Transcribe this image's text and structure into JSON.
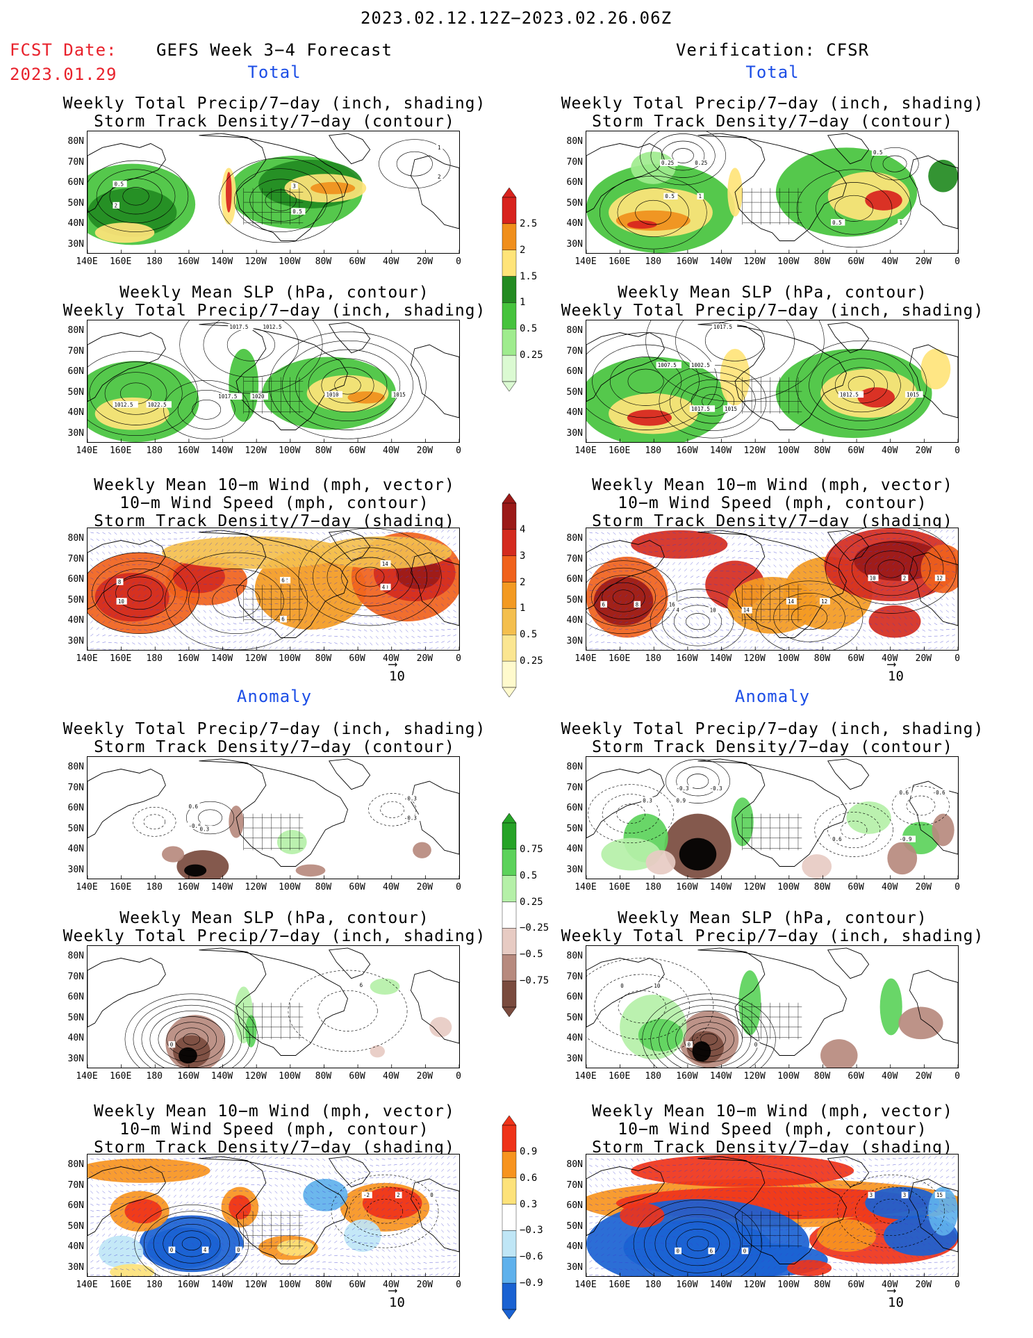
{
  "header": {
    "period": "2023.02.12.12Z−2023.02.26.06Z",
    "fcst_label": "FCST Date:",
    "fcst_date": "2023.01.29",
    "left_title": "GEFS Week 3−4 Forecast",
    "right_title": "Verification: CFSR",
    "total": "Total",
    "anomaly": "Anomaly"
  },
  "panel_titles": {
    "precip_storm": [
      "Weekly Total Precip/7−day (inch, shading)",
      "Storm Track Density/7−day (contour)"
    ],
    "slp_precip": [
      "Weekly Mean SLP (hPa, contour)",
      "Weekly Total Precip/7−day (inch, shading)"
    ],
    "wind": [
      "Weekly Mean 10−m Wind (mph, vector)",
      "10−m Wind Speed (mph, contour)",
      "Storm Track Density/7−day (shading)"
    ]
  },
  "axes": {
    "lat_labels": [
      "80N",
      "70N",
      "60N",
      "50N",
      "40N",
      "30N"
    ],
    "lon_labels": [
      "140E",
      "160E",
      "180",
      "160W",
      "140W",
      "120W",
      "100W",
      "80W",
      "60W",
      "40W",
      "20W",
      "0"
    ]
  },
  "vector_ref": "10",
  "colorbars": {
    "precip_total": {
      "labels": [
        "2.5",
        "2",
        "1.5",
        "1",
        "0.5",
        "0.25"
      ],
      "colors": [
        "#d8231e",
        "#f08f1c",
        "#ffe479",
        "#238b22",
        "#46c33d",
        "#9fec8e",
        "#dbfad2"
      ]
    },
    "storm_total": {
      "labels": [
        "4",
        "3",
        "2",
        "1",
        "0.5",
        "0.25"
      ],
      "colors": [
        "#9b1a18",
        "#d42b1f",
        "#f0621c",
        "#f39a22",
        "#f4bf4e",
        "#fbe691",
        "#fffacd"
      ]
    },
    "precip_anom": {
      "labels": [
        "0.75",
        "0.5",
        "0.25",
        "−0.25",
        "−0.5",
        "−0.75"
      ],
      "colors": [
        "#26a327",
        "#5cd25b",
        "#b5f0a8",
        "#ffffff",
        "#e7cbc3",
        "#b78a7e",
        "#7a4b3e"
      ]
    },
    "storm_anom": {
      "labels": [
        "0.9",
        "0.6",
        "0.3",
        "−0.3",
        "−0.6",
        "−0.9"
      ],
      "colors": [
        "#ef3319",
        "#f7941f",
        "#fde27a",
        "#ffffff",
        "#bfe6f6",
        "#5fb1ec",
        "#1a62d2"
      ]
    }
  },
  "maps": {
    "f_total_precip": {
      "contour_labels": [
        "2",
        "3",
        "2",
        "0.5",
        "0.5",
        "1"
      ]
    },
    "f_total_slp": {
      "contour_labels": [
        "1012.5",
        "1017.5",
        "1015",
        "1017.5",
        "1022.5",
        "1020",
        "1010",
        "1012.5"
      ]
    },
    "f_total_wind": {
      "contour_labels": [
        "8",
        "6",
        "4",
        "2",
        "10",
        "12",
        "10",
        "14",
        "6",
        "8",
        "4",
        "6"
      ]
    },
    "v_total_precip": {
      "contour_labels": [
        "0.25",
        "0.5",
        "1",
        "0.5",
        "0.25",
        "1",
        "0.5"
      ]
    },
    "v_total_slp": {
      "contour_labels": [
        "1017.5",
        "1007.5",
        "1015",
        "1017.5",
        "1015",
        "1002.5",
        "1012.5"
      ]
    },
    "v_total_wind": {
      "contour_labels": [
        "6",
        "10",
        "12",
        "14",
        "8",
        "14",
        "10",
        "12",
        "16",
        "4",
        "2"
      ]
    },
    "f_anom_precip": {
      "contour_labels": [
        "-0.6",
        "-0.3",
        "0.3",
        "0.6",
        "-0.3"
      ]
    },
    "f_anom_slp": {
      "contour_labels": [
        "0",
        "6"
      ]
    },
    "f_anom_wind": {
      "contour_labels": [
        "0",
        "2",
        "0",
        "-2",
        "4",
        "0"
      ]
    },
    "v_anom_precip": {
      "contour_labels": [
        "-0.3",
        "0.3",
        "-0.9",
        "0.6",
        "-0.3",
        "0.9",
        "0.6",
        "-0.6"
      ]
    },
    "v_anom_slp": {
      "contour_labels": [
        "0",
        "10",
        "0",
        "0"
      ]
    },
    "v_anom_wind": {
      "contour_labels": [
        "0",
        "3",
        "0",
        "3",
        "6",
        "15",
        "0"
      ]
    }
  }
}
